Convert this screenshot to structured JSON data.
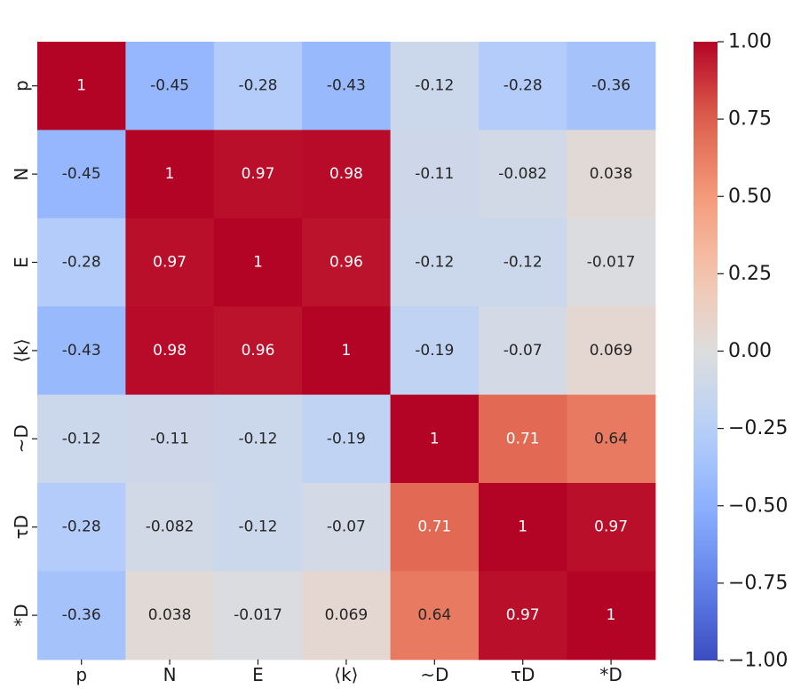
{
  "chart_data": {
    "type": "heatmap",
    "title": "",
    "xlabel": "",
    "ylabel": "",
    "x_labels": [
      "p",
      "N",
      "E",
      "⟨k⟩",
      "~D",
      "τD",
      "*D"
    ],
    "y_labels": [
      "p",
      "N",
      "E",
      "⟨k⟩",
      "~D",
      "τD",
      "*D"
    ],
    "values": [
      [
        1,
        -0.45,
        -0.28,
        -0.43,
        -0.12,
        -0.28,
        -0.36
      ],
      [
        -0.45,
        1,
        0.97,
        0.98,
        -0.11,
        -0.082,
        0.038
      ],
      [
        -0.28,
        0.97,
        1,
        0.96,
        -0.12,
        -0.12,
        -0.017
      ],
      [
        -0.43,
        0.98,
        0.96,
        1,
        -0.19,
        -0.07,
        0.069
      ],
      [
        -0.12,
        -0.11,
        -0.12,
        -0.19,
        1,
        0.71,
        0.64
      ],
      [
        -0.28,
        -0.082,
        -0.12,
        -0.07,
        0.71,
        1,
        0.97
      ],
      [
        -0.36,
        0.038,
        -0.017,
        0.069,
        0.64,
        0.97,
        1
      ]
    ],
    "colormap": "coolwarm",
    "vmin": -1.0,
    "vmax": 1.0,
    "colorbar_ticks": [
      "1.00",
      "0.75",
      "0.50",
      "0.25",
      "0.00",
      "−0.25",
      "−0.50",
      "−0.75",
      "−1.00"
    ],
    "colorbar_tick_values": [
      1.0,
      0.75,
      0.5,
      0.25,
      0.0,
      -0.25,
      -0.5,
      -0.75,
      -1.0
    ]
  }
}
